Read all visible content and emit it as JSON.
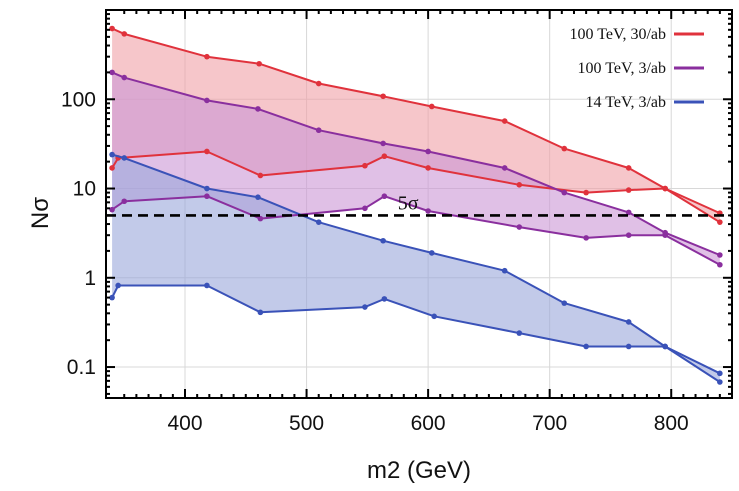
{
  "chart_data": {
    "type": "area",
    "title": "",
    "xlabel": "m2 (GeV)",
    "ylabel": "Nσ",
    "x_scale": "linear",
    "y_scale": "log",
    "xlim": [
      335,
      850
    ],
    "ylim": [
      0.045,
      1000
    ],
    "grid": true,
    "x_ticks": [
      {
        "value": 400,
        "label": "400"
      },
      {
        "value": 500,
        "label": "500"
      },
      {
        "value": 600,
        "label": "600"
      },
      {
        "value": 700,
        "label": "700"
      },
      {
        "value": 800,
        "label": "800"
      }
    ],
    "y_ticks": [
      {
        "value": 0.1,
        "label": "0.1"
      },
      {
        "value": 1,
        "label": "1"
      },
      {
        "value": 10,
        "label": "10"
      },
      {
        "value": 100,
        "label": "100"
      }
    ],
    "legend_position": "top-right",
    "reference_line": {
      "y": 5,
      "style": "dashed",
      "label": "5σ",
      "label_x": 575
    },
    "series": [
      {
        "name": "100 TeV, 30/ab",
        "color": "#e0323c",
        "fill": "#f0a0a6",
        "upper": {
          "x": [
            340,
            350,
            418,
            461,
            510,
            563,
            603,
            663,
            712,
            765,
            795,
            840
          ],
          "y": [
            620,
            540,
            300,
            250,
            150,
            108,
            83,
            57,
            28,
            17,
            10,
            5.3
          ]
        },
        "lower": {
          "x": [
            340,
            345,
            418,
            462,
            548,
            564,
            600,
            675,
            730,
            765,
            795,
            840
          ],
          "y": [
            17,
            22,
            26,
            14,
            18,
            23,
            17,
            11,
            9,
            9.6,
            10,
            4.2
          ]
        }
      },
      {
        "name": "100 TeV, 3/ab",
        "color": "#8a2f9e",
        "fill": "#cc96d6",
        "upper": {
          "x": [
            340,
            350,
            418,
            460,
            510,
            563,
            600,
            663,
            712,
            765,
            795,
            840
          ],
          "y": [
            200,
            175,
            97,
            78,
            45,
            32,
            26,
            17,
            9,
            5.4,
            3.2,
            1.8
          ]
        },
        "lower": {
          "x": [
            340,
            350,
            418,
            462,
            548,
            564,
            600,
            675,
            730,
            765,
            795,
            840
          ],
          "y": [
            5.8,
            7.2,
            8.2,
            4.6,
            6,
            8.2,
            5.6,
            3.7,
            2.8,
            3,
            3,
            1.4
          ]
        }
      },
      {
        "name": "14 TeV, 3/ab",
        "color": "#3a52b8",
        "fill": "#9aa6da",
        "upper": {
          "x": [
            340,
            350,
            418,
            460,
            510,
            563,
            603,
            663,
            712,
            765,
            795,
            840
          ],
          "y": [
            24,
            22,
            10,
            8,
            4.2,
            2.6,
            1.9,
            1.2,
            0.52,
            0.32,
            0.17,
            0.085
          ]
        },
        "lower": {
          "x": [
            340,
            345,
            418,
            462,
            548,
            564,
            605,
            675,
            730,
            765,
            795,
            840
          ],
          "y": [
            0.6,
            0.82,
            0.82,
            0.41,
            0.47,
            0.58,
            0.37,
            0.24,
            0.17,
            0.17,
            0.17,
            0.068
          ]
        }
      }
    ]
  }
}
